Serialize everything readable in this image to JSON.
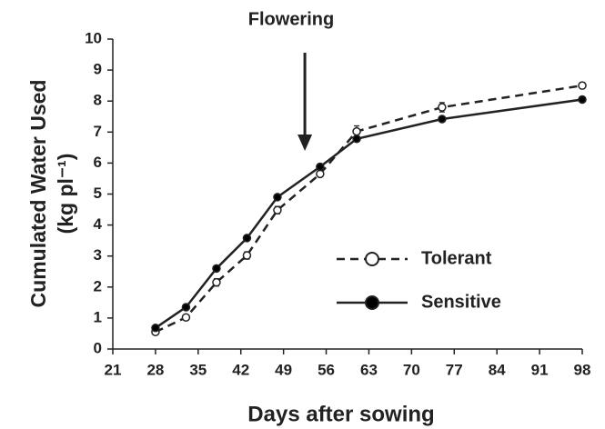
{
  "chart_data": {
    "type": "line",
    "annotation": {
      "text": "Flowering",
      "x": 52.5
    },
    "xlabel": "Days after sowing",
    "ylabel": [
      "Cumulated Water Used",
      "(kg pl⁻¹)"
    ],
    "x": [
      28,
      33,
      38,
      43,
      48,
      55,
      61,
      75,
      98
    ],
    "series": [
      {
        "name": "Tolerant",
        "color": "#222222",
        "linestyle": "dashed",
        "marker_fill": "white",
        "values": [
          0.55,
          1.02,
          2.15,
          3.02,
          4.48,
          5.65,
          7.02,
          7.8,
          8.5
        ],
        "errors": [
          0.08,
          0.05,
          0.12,
          0.12,
          0.12,
          0.08,
          0.18,
          0.15,
          0.1
        ]
      },
      {
        "name": "Sensitive",
        "color": "#222222",
        "linestyle": "solid",
        "marker_fill": "black",
        "values": [
          0.68,
          1.35,
          2.6,
          3.58,
          4.9,
          5.88,
          6.78,
          7.42,
          8.05
        ],
        "errors": [
          0.05,
          0.05,
          0.08,
          0.05,
          0.05,
          0.05,
          0.05,
          0.08,
          0.08
        ]
      }
    ],
    "xlim": [
      21,
      98
    ],
    "xticks": [
      21,
      28,
      35,
      42,
      49,
      56,
      63,
      70,
      77,
      84,
      91,
      98
    ],
    "ylim": [
      0,
      10
    ],
    "yticks": [
      0,
      1,
      2,
      3,
      4,
      5,
      6,
      7,
      8,
      9,
      10
    ],
    "grid": false,
    "legend": "center right"
  }
}
